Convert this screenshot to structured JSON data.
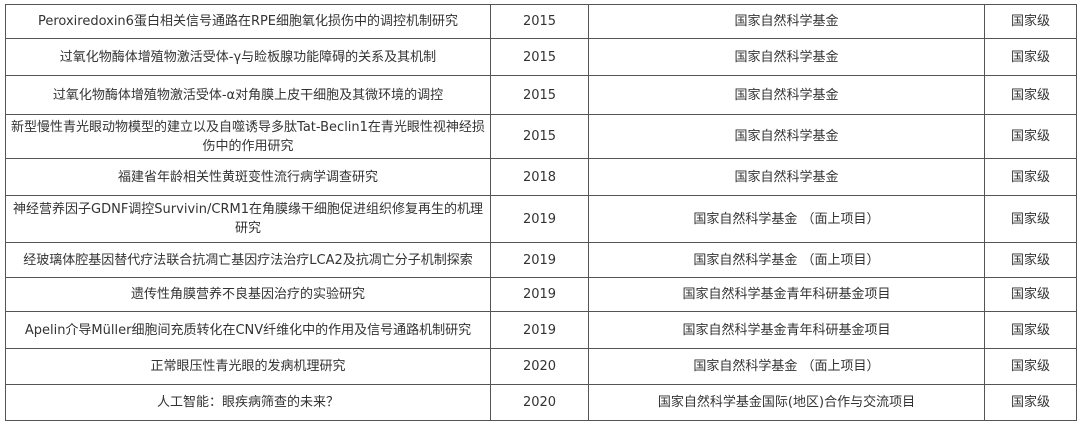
{
  "rows": [
    {
      "title": "Peroxiredoxin6蛋白相关信号通路在RPE细胞氧化损伤中的调控机制研究",
      "year": "2015",
      "fund": "国家自然科学基金",
      "level": "国家级"
    },
    {
      "title": "过氧化物酶体增殖物激活受体-γ与睑板腺功能障碍的关系及其机制",
      "year": "2015",
      "fund": "国家自然科学基金",
      "level": "国家级"
    },
    {
      "title": "过氧化物酶体增殖物激活受体-α对角膜上皮干细胞及其微环境的调控",
      "year": "2015",
      "fund": "国家自然科学基金",
      "level": "国家级"
    },
    {
      "title": "新型慢性青光眼动物模型的建立以及自噬诱导多肽Tat-Beclin1在青光眼性视神经损伤中的作用研究",
      "year": "2015",
      "fund": "国家自然科学基金",
      "level": "国家级"
    },
    {
      "title": "福建省年龄相关性黄斑变性流行病学调查研究",
      "year": "2018",
      "fund": "国家自然科学基金",
      "level": "国家级"
    },
    {
      "title": "神经营养因子GDNF调控Survivin/CRM1在角膜缘干细胞促进组织修复再生的机理研究",
      "year": "2019",
      "fund": "国家自然科学基金 （面上项目）",
      "level": "国家级"
    },
    {
      "title": "经玻璃体腔基因替代疗法联合抗凋亡基因疗法治疗LCA2及抗凋亡分子机制探索",
      "year": "2019",
      "fund": "国家自然科学基金 （面上项目）",
      "level": "国家级"
    },
    {
      "title": "遗传性角膜营养不良基因治疗的实验研究",
      "year": "2019",
      "fund": "国家自然科学基金青年科研基金项目",
      "level": "国家级"
    },
    {
      "title": "Apelin介导Müller细胞间充质转化在CNV纤维化中的作用及信号通路机制研究",
      "year": "2019",
      "fund": "国家自然科学基金青年科研基金项目",
      "level": "国家级"
    },
    {
      "title": "正常眼压性青光眼的发病机理研究",
      "year": "2020",
      "fund": "国家自然科学基金 （面上项目）",
      "level": "国家级"
    },
    {
      "title": "人工智能：眼疾病筛查的未来？",
      "year": "2020",
      "fund": "国家自然科学基金国际(地区)合作与交流项目",
      "level": "国家级"
    }
  ]
}
